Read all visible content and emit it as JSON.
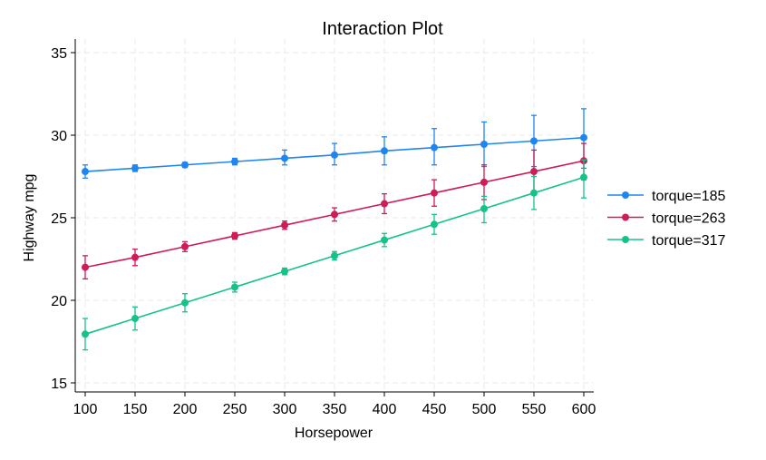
{
  "chart_data": {
    "type": "line",
    "title": "Interaction Plot",
    "xlabel": "Horsepower",
    "ylabel": "Highway mpg",
    "x": [
      100,
      150,
      200,
      250,
      300,
      350,
      400,
      450,
      500,
      550,
      600
    ],
    "xlim": [
      100,
      600
    ],
    "ylim": [
      15,
      35
    ],
    "xticks": [
      100,
      150,
      200,
      250,
      300,
      350,
      400,
      450,
      500,
      550,
      600
    ],
    "yticks": [
      15,
      20,
      25,
      30,
      35
    ],
    "grid": true,
    "legend_position": "right",
    "series": [
      {
        "name": "torque=185",
        "color": "#1f86f0",
        "values": [
          27.8,
          28.0,
          28.2,
          28.4,
          28.6,
          28.8,
          29.05,
          29.25,
          29.45,
          29.65,
          29.85
        ],
        "err_low": [
          27.4,
          27.8,
          28.05,
          28.2,
          28.2,
          28.2,
          28.2,
          28.2,
          28.1,
          28.1,
          28.0
        ],
        "err_high": [
          28.2,
          28.2,
          28.35,
          28.6,
          29.1,
          29.5,
          29.9,
          30.4,
          30.8,
          31.2,
          31.6
        ]
      },
      {
        "name": "torque=263",
        "color": "#cf1b56",
        "values": [
          22.0,
          22.6,
          23.25,
          23.9,
          24.55,
          25.2,
          25.85,
          26.5,
          27.15,
          27.8,
          28.45
        ],
        "err_low": [
          21.3,
          22.1,
          22.95,
          23.7,
          24.3,
          24.8,
          25.25,
          25.7,
          26.1,
          26.5,
          27.3
        ],
        "err_high": [
          22.7,
          23.1,
          23.55,
          24.1,
          24.8,
          25.6,
          26.45,
          27.3,
          28.2,
          29.1,
          29.5
        ]
      },
      {
        "name": "torque=317",
        "color": "#15c389",
        "values": [
          17.95,
          18.9,
          19.85,
          20.8,
          21.75,
          22.7,
          23.65,
          24.6,
          25.55,
          26.5,
          27.45
        ],
        "err_low": [
          17.0,
          18.2,
          19.3,
          20.5,
          21.55,
          22.45,
          23.25,
          24.0,
          24.7,
          25.5,
          26.2
        ],
        "err_high": [
          18.9,
          19.6,
          20.4,
          21.1,
          21.95,
          22.95,
          24.05,
          25.2,
          26.3,
          27.5,
          28.5
        ]
      }
    ]
  }
}
